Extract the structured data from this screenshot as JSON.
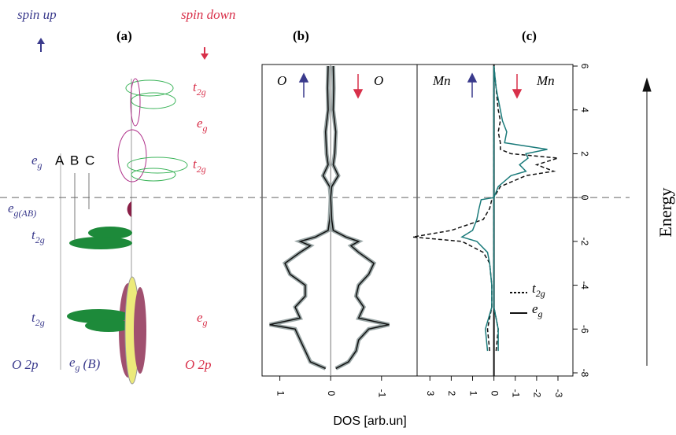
{
  "header": {
    "spin_up": "spin up",
    "spin_down": "spin down",
    "energy_label": "Energy",
    "x_label": "DOS [arb.un]"
  },
  "panel_a": {
    "label": "(a)",
    "levels": [
      {
        "main": "t",
        "sub": "2g"
      },
      {
        "main": "e",
        "sub": "g"
      },
      {
        "main": "t",
        "sub": "2g"
      },
      {
        "main": "e",
        "sub": "g"
      },
      {
        "main": "e",
        "sub": "g(AB)"
      },
      {
        "main": "t",
        "sub": "2g"
      },
      {
        "main": "t",
        "sub": "2g"
      },
      {
        "main": "e",
        "sub": "g"
      },
      {
        "main": "O 2p",
        "sub": ""
      },
      {
        "main": "e",
        "sub": "g",
        "rest": "(B)"
      },
      {
        "main": "O 2p",
        "sub": ""
      }
    ],
    "transitions": [
      "A",
      "B",
      "C"
    ]
  },
  "panel_b": {
    "label": "(b)",
    "left_label": "O",
    "right_label": "O",
    "xlim": [
      1.35,
      -1.7
    ],
    "xticks": [
      1,
      0,
      -1
    ],
    "energies": [
      -7.8,
      -7.5,
      -7,
      -6.5,
      -6,
      -5.8,
      -5.5,
      -5,
      -4.5,
      -4,
      -3.5,
      -3,
      -2.5,
      -2.2,
      -2,
      -1.8,
      -1.5,
      -1,
      0,
      0.5,
      1,
      1.5,
      2,
      3,
      4,
      5,
      6
    ],
    "up": [
      0.1,
      0.4,
      0.5,
      0.6,
      0.7,
      1.2,
      0.6,
      0.7,
      0.5,
      0.5,
      0.8,
      0.9,
      0.6,
      0.4,
      0.6,
      0.3,
      0.05,
      0.02,
      0,
      0.02,
      0.15,
      0.05,
      0.08,
      0.1,
      0.05,
      0.06,
      0.05
    ],
    "down": [
      -0.1,
      -0.35,
      -0.5,
      -0.55,
      -0.75,
      -1.15,
      -0.55,
      -0.65,
      -0.5,
      -0.55,
      -0.75,
      -0.85,
      -0.55,
      -0.4,
      -0.55,
      -0.3,
      -0.05,
      -0.02,
      0,
      -0.02,
      -0.15,
      -0.05,
      -0.08,
      -0.1,
      -0.05,
      -0.06,
      -0.05
    ],
    "fill_color": "#9aa6a6",
    "line_color": "#111111"
  },
  "panel_c": {
    "label": "(c)",
    "left_label": "Mn",
    "right_label": "Mn",
    "xlim": [
      3.6,
      -3.7
    ],
    "xticks": [
      3,
      2,
      1,
      0,
      -1,
      -2,
      -3
    ],
    "ylim": [
      -8,
      6
    ],
    "yticks": [
      -8,
      -6,
      -4,
      -2,
      0,
      2,
      4,
      6
    ],
    "energies": [
      -7,
      -6,
      -5,
      -4,
      -3,
      -2.5,
      -2,
      -1.8,
      -1.5,
      -1,
      -0.5,
      -0.1,
      0,
      0.5,
      1,
      1.2,
      1.5,
      1.8,
      2,
      2.2,
      2.5,
      3,
      3.5,
      4,
      5,
      6
    ],
    "series": [
      {
        "name": {
          "main": "t",
          "sub": "2g"
        },
        "color": "#111111",
        "dash": true,
        "up": [
          0.2,
          0.3,
          0.1,
          0.1,
          0.2,
          0.5,
          1.5,
          3.8,
          2,
          0.5,
          0.2,
          0.1,
          0,
          0,
          0,
          0,
          0,
          0,
          0,
          0,
          0,
          0,
          0,
          0,
          0,
          0
        ],
        "down": [
          -0.1,
          -0.2,
          0,
          0,
          0,
          0,
          0,
          0,
          0,
          0,
          0,
          0,
          0,
          -0.3,
          -1.5,
          -2.8,
          -2,
          -3,
          -0.8,
          -0.3,
          -0.3,
          -0.2,
          -0.3,
          -0.2,
          -0.1,
          0
        ]
      },
      {
        "name": {
          "main": "e",
          "sub": "g"
        },
        "color": "#1a7a7a",
        "dash": false,
        "up": [
          0.3,
          0.4,
          0.1,
          0.1,
          0.2,
          0.3,
          0.8,
          1.5,
          1,
          0.8,
          0.7,
          0.6,
          0,
          0,
          0,
          0,
          0,
          0,
          0,
          0,
          0,
          0,
          0,
          0,
          0,
          0
        ],
        "down": [
          -0.2,
          -0.2,
          0,
          0,
          0,
          0,
          0,
          0,
          0,
          0,
          0,
          0,
          0,
          -0.2,
          -0.8,
          -1.5,
          -1.2,
          -1.6,
          -1.5,
          -2.5,
          -0.5,
          -0.6,
          -0.4,
          -0.3,
          -0.1,
          0
        ]
      }
    ]
  }
}
